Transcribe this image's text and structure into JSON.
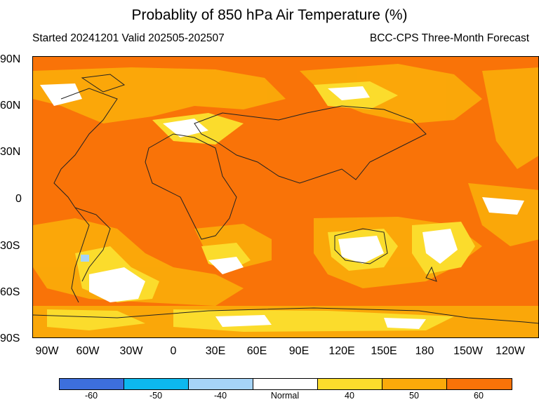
{
  "header": {
    "title": "Probablity of 850 hPa Air Temperature (%)",
    "subtitle_left": "Started 20241201  Valid 202505-202507",
    "subtitle_right": "BCC-CPS Three-Month Forecast"
  },
  "lat_labels": [
    "90N",
    "60N",
    "30N",
    "0",
    "30S",
    "60S",
    "90S"
  ],
  "lon_labels": [
    "90W",
    "60W",
    "30W",
    "0",
    "30E",
    "60E",
    "90E",
    "120E",
    "150E",
    "180",
    "150W",
    "120W"
  ],
  "legend": {
    "labels": [
      "-60",
      "-50",
      "-40",
      "Normal",
      "40",
      "50",
      "60"
    ],
    "colors": [
      "#3d6fdc",
      "#0db8ee",
      "#a6d4f8",
      "#ffffff",
      "#fbdc2c",
      "#fbaa0a",
      "#f97308"
    ]
  },
  "map": {
    "dominant_category": "60",
    "background_color": "#f97308"
  }
}
